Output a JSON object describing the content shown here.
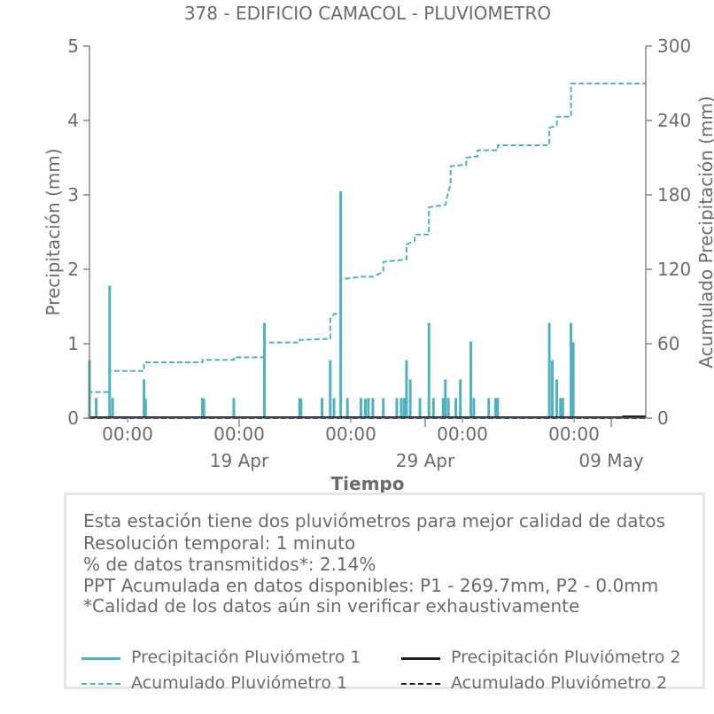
{
  "chart_data": {
    "type": "line",
    "title": "378 - EDIFICIO CAMACOL - PLUVIOMETRO",
    "xlabel": "Tiempo",
    "ylabel": "Precipitación (mm)",
    "y2label": "Acumulado Precipitación (mm)",
    "ylim": [
      0,
      5
    ],
    "y2lim": [
      0,
      300
    ],
    "xlim": [
      "2024-04-11",
      "2024-05-12"
    ],
    "yticks": [
      "0",
      "1",
      "2",
      "3",
      "4",
      "5"
    ],
    "y2ticks": [
      "0",
      "60",
      "120",
      "180",
      "240",
      "300"
    ],
    "xticks_minor": [
      "00:00",
      "00:00",
      "00:00",
      "00:00",
      "00:00"
    ],
    "xticks_major": [
      "19 Apr",
      "29 Apr",
      "09 May"
    ],
    "grid": false,
    "colors": {
      "p1": "#4fb1c1",
      "p2": "#1c1c3a"
    },
    "series": [
      {
        "name": "Precipitación Pluviómetro 1",
        "axis": "left",
        "style": "solid",
        "points": [
          [
            "2024-04-11T00:00",
            0.78
          ],
          [
            "2024-04-11T09:00",
            0.27
          ],
          [
            "2024-04-12T03:00",
            1.78
          ],
          [
            "2024-04-12T07:00",
            0.27
          ],
          [
            "2024-04-14T01:00",
            0.52
          ],
          [
            "2024-04-14T03:00",
            0.26
          ],
          [
            "2024-04-17T07:00",
            0.27
          ],
          [
            "2024-04-17T09:00",
            0.26
          ],
          [
            "2024-04-19T01:00",
            0.27
          ],
          [
            "2024-04-20T18:00",
            1.28
          ],
          [
            "2024-04-22T17:00",
            0.27
          ],
          [
            "2024-04-22T19:00",
            0.26
          ],
          [
            "2024-04-23T23:00",
            0.27
          ],
          [
            "2024-04-24T10:00",
            0.78
          ],
          [
            "2024-04-24T15:00",
            0.27
          ],
          [
            "2024-04-25T00:00",
            3.05
          ],
          [
            "2024-04-25T09:00",
            0.27
          ],
          [
            "2024-04-26T03:00",
            0.27
          ],
          [
            "2024-04-26T09:00",
            0.26
          ],
          [
            "2024-04-26T13:00",
            0.27
          ],
          [
            "2024-04-26T19:00",
            0.27
          ],
          [
            "2024-04-27T09:00",
            0.27
          ],
          [
            "2024-04-28T03:00",
            0.27
          ],
          [
            "2024-04-28T09:00",
            0.27
          ],
          [
            "2024-04-28T13:00",
            0.27
          ],
          [
            "2024-04-28T16:00",
            0.78
          ],
          [
            "2024-04-28T21:00",
            0.52
          ],
          [
            "2024-04-29T10:00",
            0.27
          ],
          [
            "2024-04-29T22:00",
            1.28
          ],
          [
            "2024-04-30T04:00",
            0.27
          ],
          [
            "2024-04-30T17:00",
            0.27
          ],
          [
            "2024-04-30T20:00",
            0.52
          ],
          [
            "2024-05-01T00:00",
            0.27
          ],
          [
            "2024-05-01T10:00",
            0.27
          ],
          [
            "2024-05-01T16:00",
            0.52
          ],
          [
            "2024-05-02T06:00",
            1.03
          ],
          [
            "2024-05-02T10:00",
            0.27
          ],
          [
            "2024-05-03T06:00",
            0.27
          ],
          [
            "2024-05-03T15:00",
            0.27
          ],
          [
            "2024-05-03T18:00",
            0.27
          ],
          [
            "2024-05-06T15:00",
            1.28
          ],
          [
            "2024-05-06T19:00",
            0.78
          ],
          [
            "2024-05-07T01:00",
            0.52
          ],
          [
            "2024-05-07T06:00",
            0.27
          ],
          [
            "2024-05-07T09:00",
            0.27
          ],
          [
            "2024-05-07T20:00",
            1.28
          ],
          [
            "2024-05-07T23:00",
            1.02
          ]
        ]
      },
      {
        "name": "Precipitación Pluviómetro 2",
        "axis": "left",
        "style": "solid",
        "points": [
          [
            "2024-04-11T00:00",
            0.01
          ],
          [
            "2024-05-10T16:00",
            0.01
          ],
          [
            "2024-05-10T18:00",
            0.02
          ],
          [
            "2024-05-12T00:00",
            0.02
          ]
        ]
      },
      {
        "name": "Acumulado Pluviómetro 1",
        "axis": "right",
        "style": "dashed",
        "points": [
          [
            "2024-04-11T00:00",
            0
          ],
          [
            "2024-04-11T00:00",
            21
          ],
          [
            "2024-04-12T03:00",
            21
          ],
          [
            "2024-04-12T03:00",
            38
          ],
          [
            "2024-04-14T01:00",
            38
          ],
          [
            "2024-04-14T01:00",
            45
          ],
          [
            "2024-04-17T07:00",
            45
          ],
          [
            "2024-04-17T07:00",
            47
          ],
          [
            "2024-04-19T01:00",
            47
          ],
          [
            "2024-04-19T01:00",
            49
          ],
          [
            "2024-04-20T18:00",
            49
          ],
          [
            "2024-04-20T18:00",
            61
          ],
          [
            "2024-04-22T17:00",
            61
          ],
          [
            "2024-04-22T17:00",
            63
          ],
          [
            "2024-04-24T10:00",
            64
          ],
          [
            "2024-04-24T10:00",
            80
          ],
          [
            "2024-04-24T15:00",
            84
          ],
          [
            "2024-04-25T00:00",
            84
          ],
          [
            "2024-04-25T00:00",
            112
          ],
          [
            "2024-04-26T03:00",
            114
          ],
          [
            "2024-04-26T19:00",
            114
          ],
          [
            "2024-04-27T09:00",
            118
          ],
          [
            "2024-04-27T09:00",
            126
          ],
          [
            "2024-04-28T16:00",
            128
          ],
          [
            "2024-04-28T16:00",
            140
          ],
          [
            "2024-04-29T03:00",
            143
          ],
          [
            "2024-04-29T03:00",
            148
          ],
          [
            "2024-04-29T22:00",
            148
          ],
          [
            "2024-04-29T22:00",
            170
          ],
          [
            "2024-04-30T20:00",
            172
          ],
          [
            "2024-05-01T00:00",
            183
          ],
          [
            "2024-05-01T03:00",
            188
          ],
          [
            "2024-05-01T03:00",
            203
          ],
          [
            "2024-05-01T16:00",
            204
          ],
          [
            "2024-05-02T00:00",
            204
          ],
          [
            "2024-05-02T00:00",
            210
          ],
          [
            "2024-05-02T15:00",
            211
          ],
          [
            "2024-05-02T15:00",
            216
          ],
          [
            "2024-05-03T18:00",
            216
          ],
          [
            "2024-05-03T18:00",
            220
          ],
          [
            "2024-05-06T15:00",
            220
          ],
          [
            "2024-05-06T15:00",
            234
          ],
          [
            "2024-05-07T01:00",
            236
          ],
          [
            "2024-05-07T01:00",
            243
          ],
          [
            "2024-05-07T20:00",
            243
          ],
          [
            "2024-05-07T20:00",
            269.7
          ],
          [
            "2024-05-12T00:00",
            269.7
          ]
        ]
      },
      {
        "name": "Acumulado Pluviómetro 2",
        "axis": "right",
        "style": "dashed",
        "points": [
          [
            "2024-04-11T00:00",
            0
          ],
          [
            "2024-05-12T00:00",
            0
          ]
        ]
      }
    ]
  },
  "info": {
    "lines": [
      "Esta estación tiene dos pluviómetros para mejor calidad de datos",
      "Resolución temporal: 1 minuto",
      "% de datos transmitidos*: 2.14%",
      "PPT Acumulada en datos disponibles: P1 - 269.7mm, P2 - 0.0mm",
      "*Calidad de los datos aún sin verificar exhaustivamente"
    ]
  },
  "legend": {
    "p1_precip": "Precipitación Pluviómetro 1",
    "p2_precip": "Precipitación Pluviómetro 2",
    "p1_accum": "Acumulado Pluviómetro 1",
    "p2_accum": "Acumulado Pluviómetro 2"
  }
}
